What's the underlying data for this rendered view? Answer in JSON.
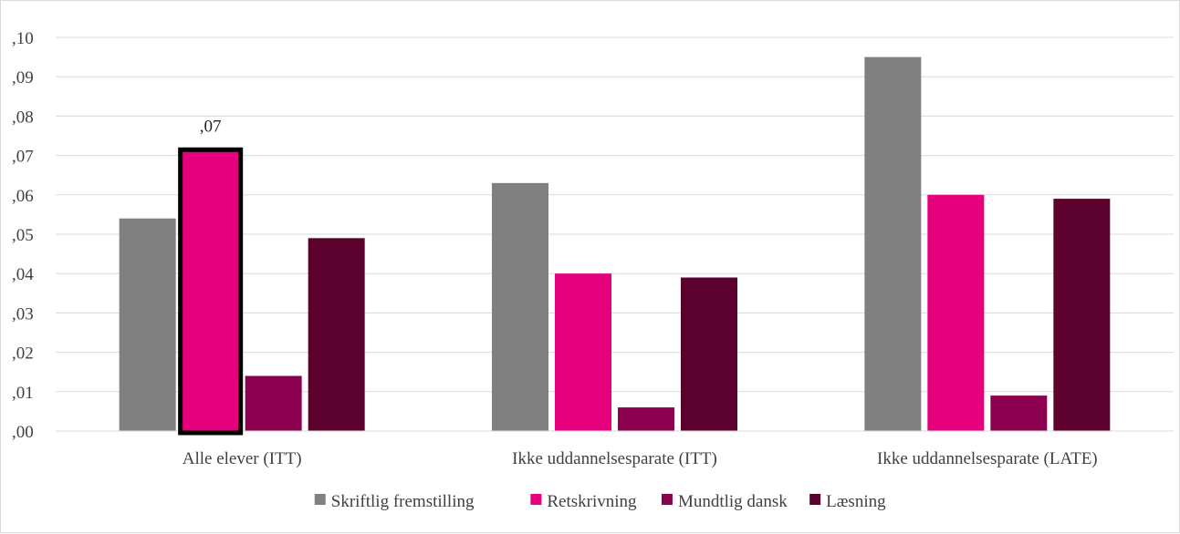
{
  "chart_data": {
    "type": "bar",
    "categories": [
      "Alle elever (ITT)",
      "Ikke uddannelsesparate (ITT)",
      "Ikke uddannelsesparate (LATE)"
    ],
    "series": [
      {
        "name": "Skriftlig fremstilling",
        "color": "#808080",
        "values": [
          0.054,
          0.063,
          0.095
        ]
      },
      {
        "name": "Retskrivning",
        "color": "#e6007e",
        "values": [
          0.071,
          0.04,
          0.06
        ]
      },
      {
        "name": "Mundtlig dansk",
        "color": "#8b004f",
        "values": [
          0.014,
          0.006,
          0.009
        ]
      },
      {
        "name": "Læsning",
        "color": "#5c002e",
        "values": [
          0.049,
          0.039,
          0.059
        ]
      }
    ],
    "y_ticks": [
      ",00",
      ",01",
      ",02",
      ",03",
      ",04",
      ",05",
      ",06",
      ",07",
      ",08",
      ",09",
      ",10"
    ],
    "ylim": [
      0,
      0.1
    ],
    "grid": true,
    "legend_position": "bottom",
    "annotations": [
      {
        "category": "Alle elever (ITT)",
        "series": "Retskrivning",
        "label": ",07",
        "highlighted": true
      }
    ]
  }
}
